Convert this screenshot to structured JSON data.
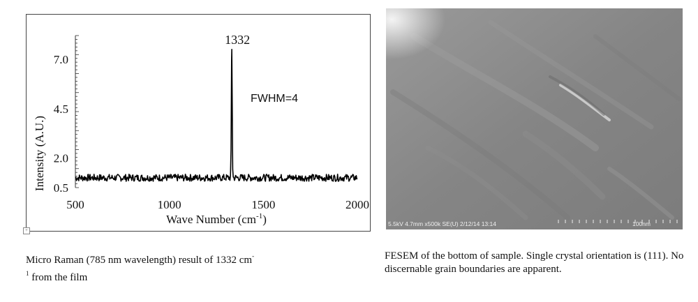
{
  "chart_data": {
    "type": "line",
    "peak_label": "1332",
    "annotation": "FWHM=4",
    "xlabel_main": "Wave Number (cm",
    "xlabel_sup": "-1",
    "xlabel_end": ")",
    "ylabel": "Intensity (A.U.)",
    "xlim": [
      500,
      2000
    ],
    "ylim": [
      0.5,
      8.2
    ],
    "x_ticks": [
      500,
      1000,
      1500,
      2000
    ],
    "y_ticks": [
      "0.5",
      "2.0",
      "4.5",
      "7.0"
    ],
    "y_tick_values": [
      0.5,
      2.0,
      4.5,
      7.0
    ],
    "baseline": 1.0,
    "noise_amplitude": 0.18,
    "peak_center": 1332,
    "peak_height": 7.5,
    "series": [
      {
        "values": []
      }
    ]
  },
  "sem": {
    "info": "5.5kV 4.7mm x500k SE(U) 2/12/14 13:14",
    "scale_label": "100nm"
  },
  "captions": {
    "left_main": "Micro Raman (785 nm wavelength) result of 1332 cm",
    "left_sup_1": "-",
    "left_sup_2": "1",
    "left_tail": " from the film",
    "right": "FESEM of the bottom of sample.  Single crystal orientation is (111). No discernable grain boundaries are apparent."
  }
}
